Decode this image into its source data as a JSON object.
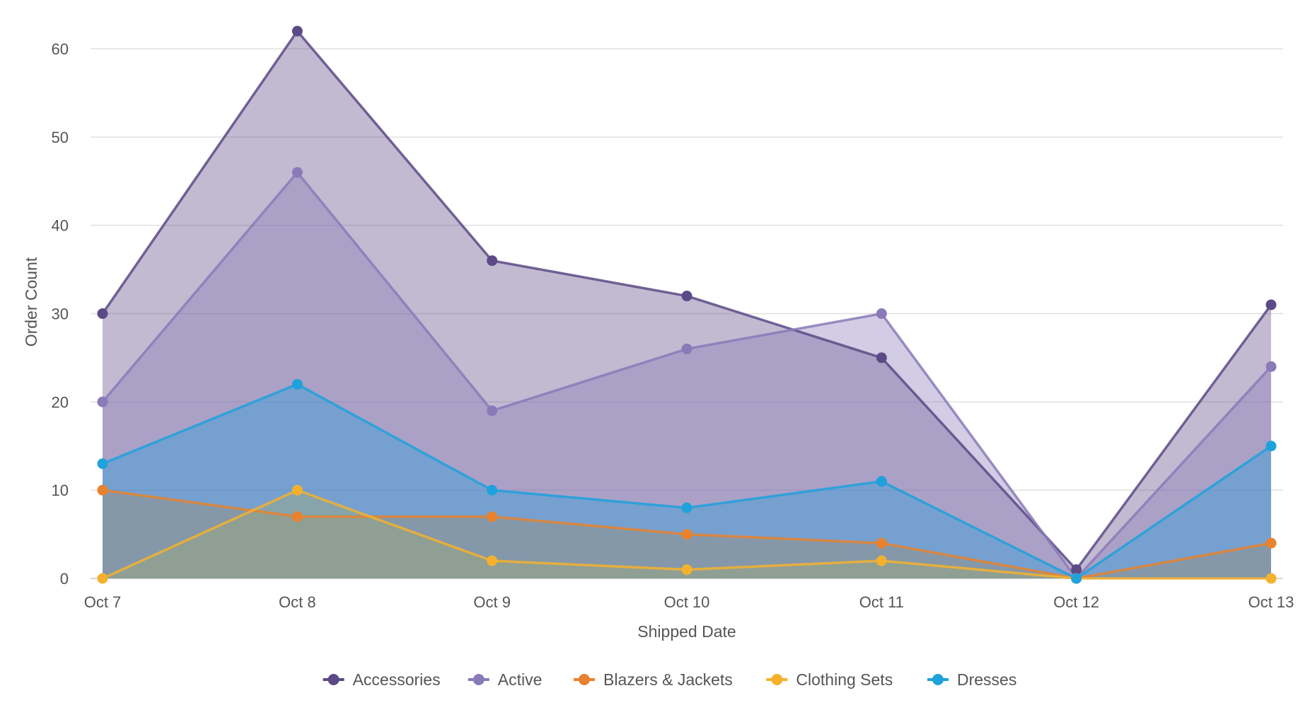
{
  "chart_data": {
    "type": "area",
    "title": "",
    "xlabel": "Shipped Date",
    "ylabel": "Order Count",
    "categories": [
      "Oct 7",
      "Oct 8",
      "Oct 9",
      "Oct 10",
      "Oct 11",
      "Oct 12",
      "Oct 13"
    ],
    "ylim": [
      0,
      60
    ],
    "yticks": [
      0,
      10,
      20,
      30,
      40,
      50,
      60
    ],
    "grid": true,
    "legend_position": "bottom",
    "series": [
      {
        "name": "Accessories",
        "color": "#5b4a86",
        "values": [
          30,
          62,
          36,
          32,
          25,
          1,
          31
        ]
      },
      {
        "name": "Active",
        "color": "#8a7ab8",
        "values": [
          20,
          46,
          19,
          26,
          30,
          0,
          24
        ]
      },
      {
        "name": "Blazers & Jackets",
        "color": "#e8822d",
        "values": [
          10,
          7,
          7,
          5,
          4,
          0,
          4
        ]
      },
      {
        "name": "Clothing Sets",
        "color": "#f4b12e",
        "values": [
          0,
          10,
          2,
          1,
          2,
          0,
          0
        ]
      },
      {
        "name": "Dresses",
        "color": "#1fa1dc",
        "values": [
          13,
          22,
          10,
          8,
          11,
          0,
          15
        ]
      }
    ]
  }
}
